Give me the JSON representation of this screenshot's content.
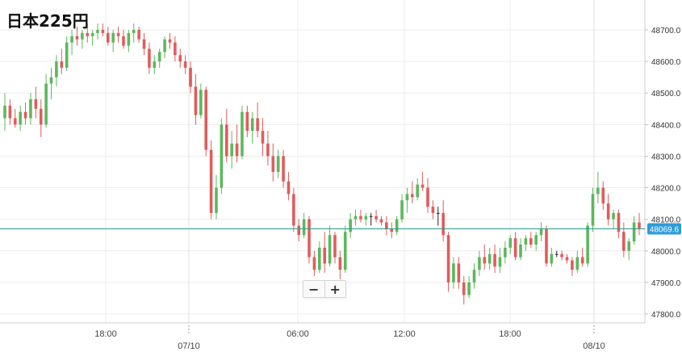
{
  "title": "日本225円",
  "zoom": {
    "minus_label": "−",
    "plus_label": "+"
  },
  "colors": {
    "up": "#5cb85c",
    "down": "#e05c5c",
    "neutral": "#222222",
    "last_line": "#2a9d8f",
    "price_tag": "#2d9cdb"
  },
  "chart_data": {
    "type": "candlestick",
    "title": "日本225円",
    "ylim": [
      47750,
      48800
    ],
    "y_ticks": [
      47800,
      47900,
      48000,
      48100,
      48200,
      48300,
      48400,
      48500,
      48600,
      48700
    ],
    "y_tick_labels": [
      "47800.0",
      "47900.0",
      "48000.0",
      "48100.0",
      "48200.0",
      "48300.0",
      "48400.0",
      "48500.0",
      "48600.0",
      "48700.0"
    ],
    "x_ticks": [
      "18:00",
      "07/10",
      "06:00",
      "12:00",
      "18:00",
      "08/10"
    ],
    "last_price": 48069.6,
    "last_price_label": "48069.6",
    "candles": [
      {
        "o": 48420,
        "h": 48500,
        "l": 48380,
        "c": 48460
      },
      {
        "o": 48460,
        "h": 48480,
        "l": 48400,
        "c": 48420
      },
      {
        "o": 48420,
        "h": 48450,
        "l": 48390,
        "c": 48400
      },
      {
        "o": 48400,
        "h": 48460,
        "l": 48380,
        "c": 48440
      },
      {
        "o": 48440,
        "h": 48470,
        "l": 48400,
        "c": 48420
      },
      {
        "o": 48420,
        "h": 48500,
        "l": 48400,
        "c": 48480
      },
      {
        "o": 48480,
        "h": 48520,
        "l": 48420,
        "c": 48450
      },
      {
        "o": 48450,
        "h": 48480,
        "l": 48360,
        "c": 48400
      },
      {
        "o": 48400,
        "h": 48560,
        "l": 48390,
        "c": 48530
      },
      {
        "o": 48530,
        "h": 48580,
        "l": 48480,
        "c": 48550
      },
      {
        "o": 48550,
        "h": 48620,
        "l": 48520,
        "c": 48600
      },
      {
        "o": 48600,
        "h": 48640,
        "l": 48560,
        "c": 48580
      },
      {
        "o": 48580,
        "h": 48680,
        "l": 48570,
        "c": 48660
      },
      {
        "o": 48660,
        "h": 48700,
        "l": 48620,
        "c": 48680
      },
      {
        "o": 48680,
        "h": 48710,
        "l": 48650,
        "c": 48670
      },
      {
        "o": 48670,
        "h": 48700,
        "l": 48640,
        "c": 48690
      },
      {
        "o": 48690,
        "h": 48720,
        "l": 48660,
        "c": 48680
      },
      {
        "o": 48680,
        "h": 48700,
        "l": 48650,
        "c": 48690
      },
      {
        "o": 48690,
        "h": 48720,
        "l": 48670,
        "c": 48700
      },
      {
        "o": 48700,
        "h": 48720,
        "l": 48680,
        "c": 48690
      },
      {
        "o": 48690,
        "h": 48710,
        "l": 48650,
        "c": 48660
      },
      {
        "o": 48660,
        "h": 48700,
        "l": 48630,
        "c": 48690
      },
      {
        "o": 48690,
        "h": 48710,
        "l": 48660,
        "c": 48680
      },
      {
        "o": 48680,
        "h": 48700,
        "l": 48640,
        "c": 48650
      },
      {
        "o": 48650,
        "h": 48700,
        "l": 48630,
        "c": 48690
      },
      {
        "o": 48690,
        "h": 48720,
        "l": 48660,
        "c": 48700
      },
      {
        "o": 48700,
        "h": 48710,
        "l": 48660,
        "c": 48670
      },
      {
        "o": 48670,
        "h": 48690,
        "l": 48620,
        "c": 48640
      },
      {
        "o": 48640,
        "h": 48660,
        "l": 48560,
        "c": 48580
      },
      {
        "o": 48580,
        "h": 48620,
        "l": 48560,
        "c": 48600
      },
      {
        "o": 48600,
        "h": 48640,
        "l": 48580,
        "c": 48630
      },
      {
        "o": 48630,
        "h": 48680,
        "l": 48610,
        "c": 48670
      },
      {
        "o": 48670,
        "h": 48690,
        "l": 48640,
        "c": 48660
      },
      {
        "o": 48660,
        "h": 48680,
        "l": 48600,
        "c": 48620
      },
      {
        "o": 48620,
        "h": 48640,
        "l": 48580,
        "c": 48600
      },
      {
        "o": 48600,
        "h": 48620,
        "l": 48560,
        "c": 48580
      },
      {
        "o": 48580,
        "h": 48600,
        "l": 48500,
        "c": 48520
      },
      {
        "o": 48520,
        "h": 48560,
        "l": 48400,
        "c": 48430
      },
      {
        "o": 48430,
        "h": 48530,
        "l": 48420,
        "c": 48510
      },
      {
        "o": 48510,
        "h": 48520,
        "l": 48300,
        "c": 48320
      },
      {
        "o": 48320,
        "h": 48350,
        "l": 48100,
        "c": 48120
      },
      {
        "o": 48120,
        "h": 48240,
        "l": 48100,
        "c": 48200
      },
      {
        "o": 48200,
        "h": 48420,
        "l": 48180,
        "c": 48400
      },
      {
        "o": 48400,
        "h": 48450,
        "l": 48280,
        "c": 48300
      },
      {
        "o": 48300,
        "h": 48380,
        "l": 48260,
        "c": 48340
      },
      {
        "o": 48340,
        "h": 48400,
        "l": 48280,
        "c": 48300
      },
      {
        "o": 48300,
        "h": 48460,
        "l": 48290,
        "c": 48440
      },
      {
        "o": 48440,
        "h": 48460,
        "l": 48360,
        "c": 48380
      },
      {
        "o": 48380,
        "h": 48440,
        "l": 48340,
        "c": 48420
      },
      {
        "o": 48420,
        "h": 48470,
        "l": 48360,
        "c": 48380
      },
      {
        "o": 48380,
        "h": 48420,
        "l": 48300,
        "c": 48340
      },
      {
        "o": 48340,
        "h": 48380,
        "l": 48270,
        "c": 48300
      },
      {
        "o": 48300,
        "h": 48340,
        "l": 48220,
        "c": 48250
      },
      {
        "o": 48250,
        "h": 48320,
        "l": 48230,
        "c": 48300
      },
      {
        "o": 48300,
        "h": 48320,
        "l": 48200,
        "c": 48220
      },
      {
        "o": 48220,
        "h": 48250,
        "l": 48160,
        "c": 48180
      },
      {
        "o": 48180,
        "h": 48200,
        "l": 48060,
        "c": 48080
      },
      {
        "o": 48080,
        "h": 48100,
        "l": 48030,
        "c": 48050
      },
      {
        "o": 48050,
        "h": 48120,
        "l": 48040,
        "c": 48100
      },
      {
        "o": 48100,
        "h": 48110,
        "l": 47960,
        "c": 47980
      },
      {
        "o": 47980,
        "h": 48000,
        "l": 47920,
        "c": 47940
      },
      {
        "o": 47940,
        "h": 48030,
        "l": 47930,
        "c": 48010
      },
      {
        "o": 48010,
        "h": 48060,
        "l": 47930,
        "c": 47960
      },
      {
        "o": 47960,
        "h": 48080,
        "l": 47950,
        "c": 48050
      },
      {
        "o": 48050,
        "h": 48060,
        "l": 47960,
        "c": 47980
      },
      {
        "o": 47980,
        "h": 48000,
        "l": 47910,
        "c": 47940
      },
      {
        "o": 47940,
        "h": 48080,
        "l": 47930,
        "c": 48060
      },
      {
        "o": 48060,
        "h": 48120,
        "l": 48040,
        "c": 48100
      },
      {
        "o": 48100,
        "h": 48130,
        "l": 48080,
        "c": 48110
      },
      {
        "o": 48110,
        "h": 48130,
        "l": 48090,
        "c": 48100
      },
      {
        "o": 48100,
        "h": 48120,
        "l": 48080,
        "c": 48110
      },
      {
        "o": 48110,
        "h": 48120,
        "l": 48080,
        "c": 48110
      },
      {
        "o": 48110,
        "h": 48130,
        "l": 48090,
        "c": 48100
      },
      {
        "o": 48100,
        "h": 48110,
        "l": 48080,
        "c": 48090
      },
      {
        "o": 48090,
        "h": 48110,
        "l": 48050,
        "c": 48070
      },
      {
        "o": 48070,
        "h": 48090,
        "l": 48040,
        "c": 48060
      },
      {
        "o": 48060,
        "h": 48110,
        "l": 48050,
        "c": 48100
      },
      {
        "o": 48100,
        "h": 48180,
        "l": 48090,
        "c": 48160
      },
      {
        "o": 48160,
        "h": 48200,
        "l": 48120,
        "c": 48180
      },
      {
        "o": 48180,
        "h": 48220,
        "l": 48150,
        "c": 48170
      },
      {
        "o": 48170,
        "h": 48230,
        "l": 48160,
        "c": 48210
      },
      {
        "o": 48210,
        "h": 48250,
        "l": 48190,
        "c": 48200
      },
      {
        "o": 48200,
        "h": 48230,
        "l": 48120,
        "c": 48140
      },
      {
        "o": 48140,
        "h": 48160,
        "l": 48100,
        "c": 48120
      },
      {
        "o": 48120,
        "h": 48140,
        "l": 48080,
        "c": 48120
      },
      {
        "o": 48120,
        "h": 48160,
        "l": 48030,
        "c": 48050
      },
      {
        "o": 48050,
        "h": 48060,
        "l": 47870,
        "c": 47900
      },
      {
        "o": 47900,
        "h": 47980,
        "l": 47880,
        "c": 47960
      },
      {
        "o": 47960,
        "h": 47980,
        "l": 47880,
        "c": 47900
      },
      {
        "o": 47900,
        "h": 47920,
        "l": 47830,
        "c": 47860
      },
      {
        "o": 47860,
        "h": 47920,
        "l": 47850,
        "c": 47900
      },
      {
        "o": 47900,
        "h": 47960,
        "l": 47880,
        "c": 47940
      },
      {
        "o": 47940,
        "h": 48000,
        "l": 47920,
        "c": 47980
      },
      {
        "o": 47980,
        "h": 48020,
        "l": 47940,
        "c": 47960
      },
      {
        "o": 47960,
        "h": 48010,
        "l": 47940,
        "c": 47990
      },
      {
        "o": 47990,
        "h": 48020,
        "l": 47930,
        "c": 47950
      },
      {
        "o": 47950,
        "h": 48010,
        "l": 47930,
        "c": 47980
      },
      {
        "o": 47980,
        "h": 48030,
        "l": 47960,
        "c": 48010
      },
      {
        "o": 48010,
        "h": 48050,
        "l": 47990,
        "c": 48040
      },
      {
        "o": 48040,
        "h": 48060,
        "l": 47970,
        "c": 47980
      },
      {
        "o": 47980,
        "h": 48040,
        "l": 47970,
        "c": 48020
      },
      {
        "o": 48020,
        "h": 48050,
        "l": 48000,
        "c": 48040
      },
      {
        "o": 48040,
        "h": 48060,
        "l": 48010,
        "c": 48020
      },
      {
        "o": 48020,
        "h": 48060,
        "l": 48000,
        "c": 48050
      },
      {
        "o": 48050,
        "h": 48090,
        "l": 48030,
        "c": 48070
      },
      {
        "o": 48070,
        "h": 48080,
        "l": 47950,
        "c": 47960
      },
      {
        "o": 47960,
        "h": 48010,
        "l": 47950,
        "c": 47990
      },
      {
        "o": 47990,
        "h": 48000,
        "l": 47980,
        "c": 47990
      },
      {
        "o": 47990,
        "h": 48000,
        "l": 47970,
        "c": 47980
      },
      {
        "o": 47980,
        "h": 47990,
        "l": 47960,
        "c": 47970
      },
      {
        "o": 47970,
        "h": 47980,
        "l": 47920,
        "c": 47940
      },
      {
        "o": 47940,
        "h": 48000,
        "l": 47930,
        "c": 47980
      },
      {
        "o": 47980,
        "h": 48010,
        "l": 47950,
        "c": 47960
      },
      {
        "o": 47960,
        "h": 48090,
        "l": 47950,
        "c": 48080
      },
      {
        "o": 48080,
        "h": 48200,
        "l": 48060,
        "c": 48180
      },
      {
        "o": 48180,
        "h": 48250,
        "l": 48150,
        "c": 48200
      },
      {
        "o": 48200,
        "h": 48220,
        "l": 48130,
        "c": 48150
      },
      {
        "o": 48150,
        "h": 48180,
        "l": 48080,
        "c": 48100
      },
      {
        "o": 48100,
        "h": 48130,
        "l": 48070,
        "c": 48120
      },
      {
        "o": 48120,
        "h": 48130,
        "l": 48040,
        "c": 48060
      },
      {
        "o": 48060,
        "h": 48090,
        "l": 47980,
        "c": 48000
      },
      {
        "o": 48000,
        "h": 48040,
        "l": 47970,
        "c": 48030
      },
      {
        "o": 48030,
        "h": 48110,
        "l": 48020,
        "c": 48090
      },
      {
        "o": 48090,
        "h": 48120,
        "l": 48050,
        "c": 48070
      }
    ]
  }
}
